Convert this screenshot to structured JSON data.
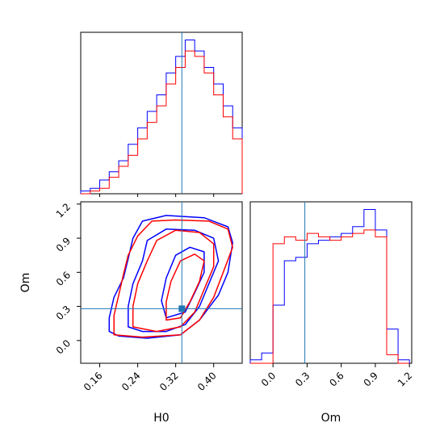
{
  "chart_data": {
    "type": "corner",
    "series": [
      {
        "name": "",
        "color": "#0000ff"
      },
      {
        "name": "",
        "color": "#ff0000"
      }
    ],
    "truth": {
      "H0": 0.333,
      "Om": 0.28,
      "color": "#1f77b4"
    },
    "panels": [
      {
        "id": "H0-hist",
        "type": "step-histogram",
        "xlim": [
          0.12,
          0.46
        ],
        "bin_edges": [
          0.12,
          0.14,
          0.16,
          0.18,
          0.2,
          0.22,
          0.24,
          0.26,
          0.28,
          0.3,
          0.32,
          0.34,
          0.36,
          0.38,
          0.4,
          0.42,
          0.44,
          0.46
        ],
        "series": [
          {
            "color": "#0000ff",
            "values": [
              0.01,
              0.02,
              0.05,
              0.08,
              0.12,
              0.18,
              0.24,
              0.3,
              0.36,
              0.44,
              0.5,
              0.56,
              0.52,
              0.46,
              0.4,
              0.32,
              0.24
            ]
          },
          {
            "color": "#ff0000",
            "values": [
              0.0,
              0.01,
              0.02,
              0.06,
              0.1,
              0.14,
              0.2,
              0.26,
              0.32,
              0.4,
              0.46,
              0.52,
              0.5,
              0.44,
              0.36,
              0.28,
              0.2
            ]
          }
        ]
      },
      {
        "id": "H0-Om-contour",
        "type": "contour",
        "xlim": [
          0.12,
          0.46
        ],
        "ylim": [
          -0.2,
          1.22
        ],
        "series": [
          {
            "color": "#0000ff",
            "levels": [
              [
                [
                  0.18,
                  0.08
                ],
                [
                  0.18,
                  0.2
                ],
                [
                  0.19,
                  0.38
                ],
                [
                  0.21,
                  0.55
                ],
                [
                  0.22,
                  0.72
                ],
                [
                  0.23,
                  0.9
                ],
                [
                  0.25,
                  1.05
                ],
                [
                  0.3,
                  1.1
                ],
                [
                  0.38,
                  1.08
                ],
                [
                  0.43,
                  1.0
                ],
                [
                  0.44,
                  0.86
                ],
                [
                  0.43,
                  0.6
                ],
                [
                  0.41,
                  0.4
                ],
                [
                  0.37,
                  0.18
                ],
                [
                  0.33,
                  0.05
                ],
                [
                  0.26,
                  0.02
                ],
                [
                  0.2,
                  0.04
                ]
              ],
              [
                [
                  0.22,
                  0.12
                ],
                [
                  0.22,
                  0.3
                ],
                [
                  0.23,
                  0.5
                ],
                [
                  0.25,
                  0.7
                ],
                [
                  0.26,
                  0.88
                ],
                [
                  0.3,
                  0.98
                ],
                [
                  0.36,
                  0.97
                ],
                [
                  0.4,
                  0.9
                ],
                [
                  0.41,
                  0.7
                ],
                [
                  0.39,
                  0.5
                ],
                [
                  0.37,
                  0.3
                ],
                [
                  0.34,
                  0.14
                ],
                [
                  0.3,
                  0.08
                ],
                [
                  0.25,
                  0.08
                ]
              ],
              [
                [
                  0.3,
                  0.2
                ],
                [
                  0.29,
                  0.35
                ],
                [
                  0.3,
                  0.55
                ],
                [
                  0.32,
                  0.75
                ],
                [
                  0.35,
                  0.82
                ],
                [
                  0.38,
                  0.78
                ],
                [
                  0.38,
                  0.6
                ],
                [
                  0.36,
                  0.42
                ],
                [
                  0.34,
                  0.25
                ]
              ]
            ]
          },
          {
            "color": "#ff0000",
            "levels": [
              [
                [
                  0.19,
                  0.05
                ],
                [
                  0.19,
                  0.22
                ],
                [
                  0.2,
                  0.4
                ],
                [
                  0.21,
                  0.58
                ],
                [
                  0.22,
                  0.75
                ],
                [
                  0.24,
                  0.92
                ],
                [
                  0.27,
                  1.05
                ],
                [
                  0.32,
                  1.06
                ],
                [
                  0.39,
                  1.05
                ],
                [
                  0.43,
                  0.98
                ],
                [
                  0.44,
                  0.82
                ],
                [
                  0.42,
                  0.6
                ],
                [
                  0.4,
                  0.38
                ],
                [
                  0.37,
                  0.18
                ],
                [
                  0.33,
                  0.05
                ],
                [
                  0.25,
                  0.03
                ]
              ],
              [
                [
                  0.23,
                  0.12
                ],
                [
                  0.23,
                  0.3
                ],
                [
                  0.24,
                  0.5
                ],
                [
                  0.26,
                  0.7
                ],
                [
                  0.28,
                  0.88
                ],
                [
                  0.32,
                  0.97
                ],
                [
                  0.37,
                  0.95
                ],
                [
                  0.4,
                  0.85
                ],
                [
                  0.4,
                  0.65
                ],
                [
                  0.38,
                  0.45
                ],
                [
                  0.36,
                  0.25
                ],
                [
                  0.33,
                  0.12
                ],
                [
                  0.28,
                  0.08
                ]
              ],
              [
                [
                  0.3,
                  0.18
                ],
                [
                  0.3,
                  0.34
                ],
                [
                  0.31,
                  0.52
                ],
                [
                  0.33,
                  0.7
                ],
                [
                  0.36,
                  0.76
                ],
                [
                  0.38,
                  0.7
                ],
                [
                  0.37,
                  0.52
                ],
                [
                  0.35,
                  0.34
                ],
                [
                  0.33,
                  0.2
                ]
              ]
            ]
          }
        ]
      },
      {
        "id": "Om-hist",
        "type": "step-histogram",
        "xlim": [
          -0.2,
          1.22
        ],
        "bin_edges": [
          -0.2,
          -0.1,
          0.0,
          0.1,
          0.2,
          0.3,
          0.4,
          0.5,
          0.6,
          0.7,
          0.8,
          0.9,
          1.0,
          1.1,
          1.2
        ],
        "series": [
          {
            "color": "#0000ff",
            "values": [
              0.02,
              0.06,
              0.34,
              0.6,
              0.62,
              0.7,
              0.72,
              0.74,
              0.76,
              0.8,
              0.9,
              0.78,
              0.2,
              0.02
            ]
          },
          {
            "color": "#ff0000",
            "values": [
              0.0,
              0.0,
              0.7,
              0.74,
              0.72,
              0.76,
              0.74,
              0.72,
              0.74,
              0.76,
              0.78,
              0.74,
              0.05,
              0.0
            ]
          }
        ]
      }
    ],
    "axes": {
      "H0": {
        "label": "H0",
        "ticks": [
          "0.16",
          "0.24",
          "0.32",
          "0.40"
        ],
        "tick_values": [
          0.16,
          0.24,
          0.32,
          0.4
        ]
      },
      "Om": {
        "label": "Om",
        "ticks": [
          "0.0",
          "0.3",
          "0.6",
          "0.9",
          "1.2"
        ],
        "tick_values": [
          0.0,
          0.3,
          0.6,
          0.9,
          1.2
        ]
      }
    },
    "grid": false,
    "legend": "none"
  }
}
